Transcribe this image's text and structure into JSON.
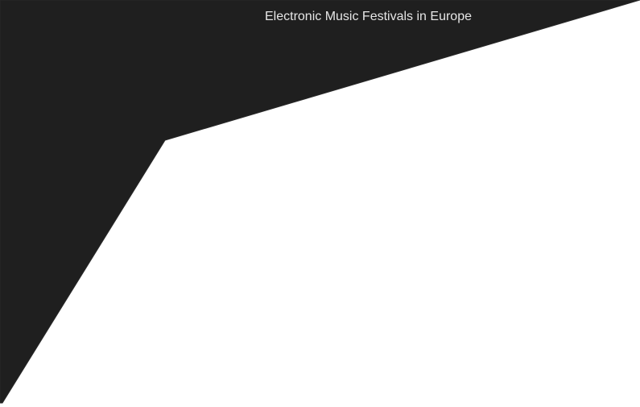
{
  "header": {
    "title": "Electronic Music Festivals in Europe"
  },
  "theme": {
    "dark_shape_color": "#1f1f1f",
    "page_background": "#ffffff",
    "title_color": "#e6e6e6"
  }
}
